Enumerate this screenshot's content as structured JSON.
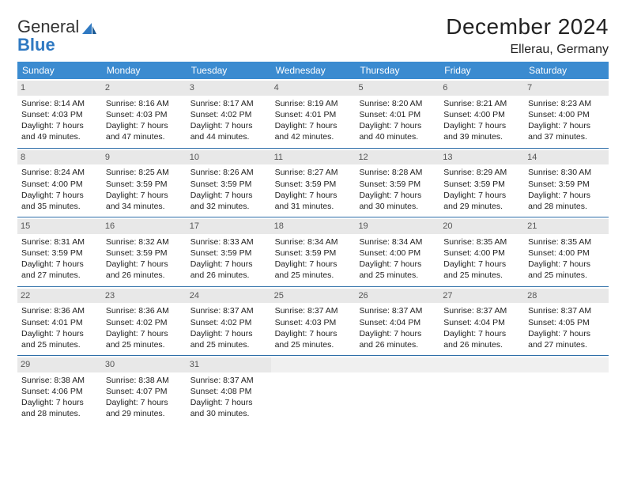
{
  "logo": {
    "word1": "General",
    "word2": "Blue"
  },
  "title": "December 2024",
  "location": "Ellerau, Germany",
  "colors": {
    "header_bg": "#3b8bd0",
    "header_text": "#ffffff",
    "week_divider": "#2f6fa8",
    "daynum_bg": "#e8e8e8",
    "logo_accent": "#2f79c2"
  },
  "days_of_week": [
    "Sunday",
    "Monday",
    "Tuesday",
    "Wednesday",
    "Thursday",
    "Friday",
    "Saturday"
  ],
  "weeks": [
    [
      {
        "n": "1",
        "sr": "Sunrise: 8:14 AM",
        "ss": "Sunset: 4:03 PM",
        "d1": "Daylight: 7 hours",
        "d2": "and 49 minutes."
      },
      {
        "n": "2",
        "sr": "Sunrise: 8:16 AM",
        "ss": "Sunset: 4:03 PM",
        "d1": "Daylight: 7 hours",
        "d2": "and 47 minutes."
      },
      {
        "n": "3",
        "sr": "Sunrise: 8:17 AM",
        "ss": "Sunset: 4:02 PM",
        "d1": "Daylight: 7 hours",
        "d2": "and 44 minutes."
      },
      {
        "n": "4",
        "sr": "Sunrise: 8:19 AM",
        "ss": "Sunset: 4:01 PM",
        "d1": "Daylight: 7 hours",
        "d2": "and 42 minutes."
      },
      {
        "n": "5",
        "sr": "Sunrise: 8:20 AM",
        "ss": "Sunset: 4:01 PM",
        "d1": "Daylight: 7 hours",
        "d2": "and 40 minutes."
      },
      {
        "n": "6",
        "sr": "Sunrise: 8:21 AM",
        "ss": "Sunset: 4:00 PM",
        "d1": "Daylight: 7 hours",
        "d2": "and 39 minutes."
      },
      {
        "n": "7",
        "sr": "Sunrise: 8:23 AM",
        "ss": "Sunset: 4:00 PM",
        "d1": "Daylight: 7 hours",
        "d2": "and 37 minutes."
      }
    ],
    [
      {
        "n": "8",
        "sr": "Sunrise: 8:24 AM",
        "ss": "Sunset: 4:00 PM",
        "d1": "Daylight: 7 hours",
        "d2": "and 35 minutes."
      },
      {
        "n": "9",
        "sr": "Sunrise: 8:25 AM",
        "ss": "Sunset: 3:59 PM",
        "d1": "Daylight: 7 hours",
        "d2": "and 34 minutes."
      },
      {
        "n": "10",
        "sr": "Sunrise: 8:26 AM",
        "ss": "Sunset: 3:59 PM",
        "d1": "Daylight: 7 hours",
        "d2": "and 32 minutes."
      },
      {
        "n": "11",
        "sr": "Sunrise: 8:27 AM",
        "ss": "Sunset: 3:59 PM",
        "d1": "Daylight: 7 hours",
        "d2": "and 31 minutes."
      },
      {
        "n": "12",
        "sr": "Sunrise: 8:28 AM",
        "ss": "Sunset: 3:59 PM",
        "d1": "Daylight: 7 hours",
        "d2": "and 30 minutes."
      },
      {
        "n": "13",
        "sr": "Sunrise: 8:29 AM",
        "ss": "Sunset: 3:59 PM",
        "d1": "Daylight: 7 hours",
        "d2": "and 29 minutes."
      },
      {
        "n": "14",
        "sr": "Sunrise: 8:30 AM",
        "ss": "Sunset: 3:59 PM",
        "d1": "Daylight: 7 hours",
        "d2": "and 28 minutes."
      }
    ],
    [
      {
        "n": "15",
        "sr": "Sunrise: 8:31 AM",
        "ss": "Sunset: 3:59 PM",
        "d1": "Daylight: 7 hours",
        "d2": "and 27 minutes."
      },
      {
        "n": "16",
        "sr": "Sunrise: 8:32 AM",
        "ss": "Sunset: 3:59 PM",
        "d1": "Daylight: 7 hours",
        "d2": "and 26 minutes."
      },
      {
        "n": "17",
        "sr": "Sunrise: 8:33 AM",
        "ss": "Sunset: 3:59 PM",
        "d1": "Daylight: 7 hours",
        "d2": "and 26 minutes."
      },
      {
        "n": "18",
        "sr": "Sunrise: 8:34 AM",
        "ss": "Sunset: 3:59 PM",
        "d1": "Daylight: 7 hours",
        "d2": "and 25 minutes."
      },
      {
        "n": "19",
        "sr": "Sunrise: 8:34 AM",
        "ss": "Sunset: 4:00 PM",
        "d1": "Daylight: 7 hours",
        "d2": "and 25 minutes."
      },
      {
        "n": "20",
        "sr": "Sunrise: 8:35 AM",
        "ss": "Sunset: 4:00 PM",
        "d1": "Daylight: 7 hours",
        "d2": "and 25 minutes."
      },
      {
        "n": "21",
        "sr": "Sunrise: 8:35 AM",
        "ss": "Sunset: 4:00 PM",
        "d1": "Daylight: 7 hours",
        "d2": "and 25 minutes."
      }
    ],
    [
      {
        "n": "22",
        "sr": "Sunrise: 8:36 AM",
        "ss": "Sunset: 4:01 PM",
        "d1": "Daylight: 7 hours",
        "d2": "and 25 minutes."
      },
      {
        "n": "23",
        "sr": "Sunrise: 8:36 AM",
        "ss": "Sunset: 4:02 PM",
        "d1": "Daylight: 7 hours",
        "d2": "and 25 minutes."
      },
      {
        "n": "24",
        "sr": "Sunrise: 8:37 AM",
        "ss": "Sunset: 4:02 PM",
        "d1": "Daylight: 7 hours",
        "d2": "and 25 minutes."
      },
      {
        "n": "25",
        "sr": "Sunrise: 8:37 AM",
        "ss": "Sunset: 4:03 PM",
        "d1": "Daylight: 7 hours",
        "d2": "and 25 minutes."
      },
      {
        "n": "26",
        "sr": "Sunrise: 8:37 AM",
        "ss": "Sunset: 4:04 PM",
        "d1": "Daylight: 7 hours",
        "d2": "and 26 minutes."
      },
      {
        "n": "27",
        "sr": "Sunrise: 8:37 AM",
        "ss": "Sunset: 4:04 PM",
        "d1": "Daylight: 7 hours",
        "d2": "and 26 minutes."
      },
      {
        "n": "28",
        "sr": "Sunrise: 8:37 AM",
        "ss": "Sunset: 4:05 PM",
        "d1": "Daylight: 7 hours",
        "d2": "and 27 minutes."
      }
    ],
    [
      {
        "n": "29",
        "sr": "Sunrise: 8:38 AM",
        "ss": "Sunset: 4:06 PM",
        "d1": "Daylight: 7 hours",
        "d2": "and 28 minutes."
      },
      {
        "n": "30",
        "sr": "Sunrise: 8:38 AM",
        "ss": "Sunset: 4:07 PM",
        "d1": "Daylight: 7 hours",
        "d2": "and 29 minutes."
      },
      {
        "n": "31",
        "sr": "Sunrise: 8:37 AM",
        "ss": "Sunset: 4:08 PM",
        "d1": "Daylight: 7 hours",
        "d2": "and 30 minutes."
      },
      {
        "empty": true
      },
      {
        "empty": true
      },
      {
        "empty": true
      },
      {
        "empty": true
      }
    ]
  ]
}
